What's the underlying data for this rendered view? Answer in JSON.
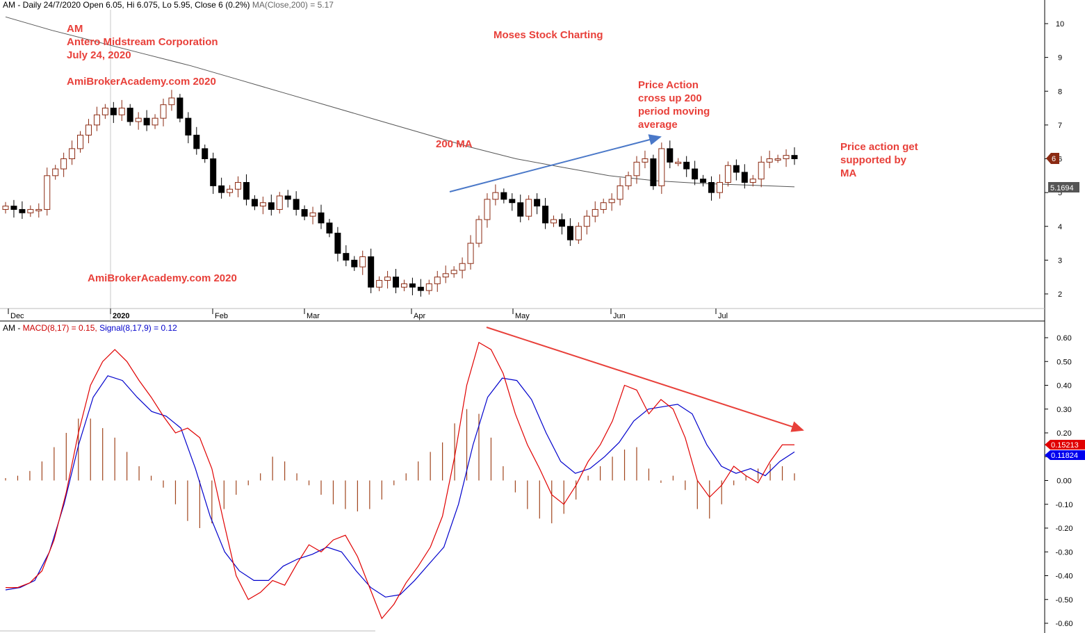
{
  "price_header": {
    "prefix": "AM - Daily 24/7/2020 Open 6.05, Hi 6.075, Lo 5.95, Close 6 (0.2%) ",
    "ma_label": "MA(Close,200) = 5.17"
  },
  "macd_header": {
    "prefix": "AM - ",
    "macd_label": "MACD(8,17) = 0.15, ",
    "signal_label": "Signal(8,17,9) = 0.12"
  },
  "annotations": {
    "ticker": "AM",
    "company": "Antero Midstream Corporation",
    "date": "July 24, 2020",
    "watermark_top": "AmiBrokerAcademy.com  2020",
    "watermark_bottom": "AmiBrokerAcademy.com  2020",
    "brand": "Moses Stock Charting",
    "ma_label": "200 MA",
    "cross_note": [
      "Price Action",
      "cross up 200",
      "period moving",
      "average"
    ],
    "support_note": [
      "Price action get",
      "supported by",
      "MA"
    ]
  },
  "badges": {
    "close": "6",
    "ma": "5.1694",
    "macd": "0.15213",
    "signal": "0.11824"
  },
  "colors": {
    "bull": "#8b2a12",
    "bear": "#000000",
    "ma": "#555555",
    "macd": "#e00000",
    "signal": "#0000cc",
    "histogram": "#a0441c",
    "annotation": "#e8403a",
    "trend_up": "#4a78c8",
    "trend_down": "#e8403a"
  },
  "chart_data": [
    {
      "type": "candlestick",
      "title": "AM - Daily 24/7/2020",
      "ylim": [
        1.5,
        10.5
      ],
      "y_ticks": [
        2,
        3,
        4,
        5,
        6,
        7,
        8,
        9,
        10
      ],
      "x_labels": [
        "Dec",
        "2020",
        "Feb",
        "Mar",
        "Apr",
        "May",
        "Jun",
        "Jul"
      ],
      "close_path": [
        4.6,
        4.5,
        4.4,
        4.5,
        4.5,
        5.5,
        5.7,
        6.0,
        6.3,
        6.7,
        7.0,
        7.3,
        7.5,
        7.3,
        7.5,
        7.1,
        7.2,
        7.0,
        7.2,
        7.6,
        7.8,
        7.2,
        6.7,
        6.3,
        6.0,
        5.2,
        5.0,
        5.1,
        5.3,
        4.8,
        4.6,
        4.7,
        4.5,
        4.9,
        4.8,
        4.5,
        4.3,
        4.4,
        4.1,
        3.8,
        3.2,
        3.0,
        2.8,
        3.1,
        2.2,
        2.4,
        2.5,
        2.2,
        2.3,
        2.2,
        2.1,
        2.3,
        2.5,
        2.6,
        2.7,
        2.9,
        3.5,
        4.2,
        4.8,
        5.0,
        4.8,
        4.7,
        4.3,
        4.8,
        4.6,
        4.1,
        4.2,
        4.0,
        3.6,
        4.0,
        4.3,
        4.5,
        4.7,
        4.8,
        5.2,
        5.5,
        5.9,
        6.0,
        5.2,
        6.3,
        5.9,
        5.9,
        5.7,
        5.4,
        5.3,
        5.0,
        5.3,
        5.8,
        5.6,
        5.3,
        5.4,
        5.9,
        6.0,
        6.0,
        6.1,
        6.0
      ],
      "ma200": [
        10.2,
        9.8,
        9.45,
        9.1,
        8.75,
        8.35,
        7.95,
        7.55,
        7.15,
        6.75,
        6.35,
        6.0,
        5.75,
        5.5,
        5.35,
        5.27,
        5.22,
        5.17
      ]
    },
    {
      "type": "macd",
      "title": "AM - MACD(8,17) = 0.15, Signal(8,17,9) = 0.12",
      "ylim": [
        -0.62,
        0.65
      ],
      "y_ticks": [
        0.6,
        0.5,
        0.4,
        0.3,
        0.2,
        0.1,
        0.0,
        -0.1,
        -0.2,
        -0.3,
        -0.4,
        -0.5,
        -0.6
      ],
      "series": [
        {
          "name": "MACD(8,17)",
          "values": [
            -0.45,
            -0.45,
            -0.43,
            -0.38,
            -0.25,
            -0.05,
            0.2,
            0.4,
            0.5,
            0.55,
            0.5,
            0.42,
            0.35,
            0.27,
            0.2,
            0.22,
            0.18,
            0.05,
            -0.18,
            -0.4,
            -0.5,
            -0.47,
            -0.42,
            -0.44,
            -0.35,
            -0.27,
            -0.3,
            -0.25,
            -0.23,
            -0.32,
            -0.45,
            -0.58,
            -0.52,
            -0.43,
            -0.36,
            -0.28,
            -0.15,
            0.1,
            0.4,
            0.58,
            0.55,
            0.45,
            0.28,
            0.15,
            0.05,
            -0.06,
            -0.1,
            -0.02,
            0.08,
            0.15,
            0.25,
            0.4,
            0.38,
            0.28,
            0.34,
            0.3,
            0.18,
            0.0,
            -0.07,
            -0.02,
            0.06,
            0.02,
            -0.01,
            0.08,
            0.15,
            0.15
          ]
        },
        {
          "name": "Signal(8,17,9)",
          "values": [
            -0.46,
            -0.45,
            -0.42,
            -0.3,
            -0.1,
            0.15,
            0.35,
            0.44,
            0.42,
            0.35,
            0.29,
            0.27,
            0.22,
            0.05,
            -0.15,
            -0.3,
            -0.38,
            -0.42,
            -0.42,
            -0.36,
            -0.33,
            -0.31,
            -0.28,
            -0.3,
            -0.38,
            -0.45,
            -0.49,
            -0.48,
            -0.42,
            -0.35,
            -0.28,
            -0.1,
            0.15,
            0.35,
            0.43,
            0.42,
            0.34,
            0.2,
            0.08,
            0.03,
            0.05,
            0.1,
            0.16,
            0.25,
            0.3,
            0.31,
            0.32,
            0.28,
            0.15,
            0.06,
            0.03,
            0.05,
            0.02,
            0.08,
            0.12
          ]
        },
        {
          "name": "Histogram",
          "values": [
            0.01,
            0.02,
            0.04,
            0.08,
            0.14,
            0.2,
            0.26,
            0.26,
            0.22,
            0.18,
            0.12,
            0.06,
            0.02,
            -0.03,
            -0.1,
            -0.17,
            -0.2,
            -0.18,
            -0.12,
            -0.06,
            -0.02,
            0.03,
            0.1,
            0.08,
            0.03,
            -0.02,
            -0.06,
            -0.1,
            -0.12,
            -0.13,
            -0.12,
            -0.08,
            -0.02,
            0.03,
            0.08,
            0.12,
            0.16,
            0.24,
            0.3,
            0.28,
            0.18,
            0.06,
            -0.05,
            -0.12,
            -0.16,
            -0.18,
            -0.14,
            -0.08,
            0.02,
            0.06,
            0.1,
            0.13,
            0.14,
            0.05,
            -0.01,
            0.02,
            -0.04,
            -0.12,
            -0.16,
            -0.1,
            -0.02,
            0.02,
            0.05,
            0.07,
            0.06,
            0.03
          ]
        }
      ]
    }
  ]
}
